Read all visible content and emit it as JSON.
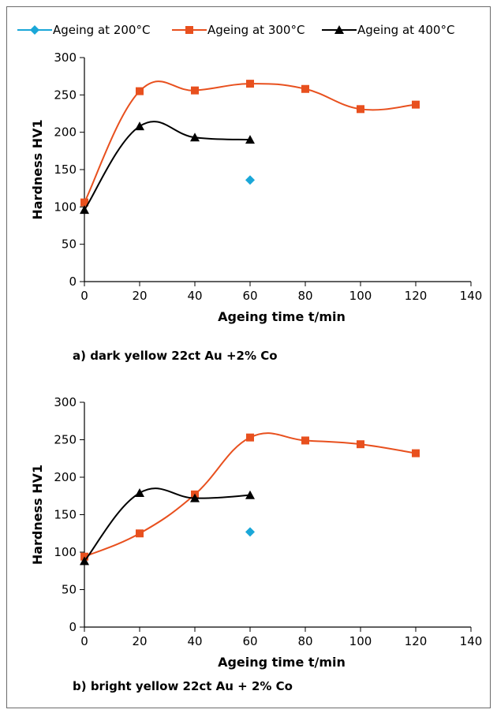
{
  "chart_data": [
    {
      "type": "line",
      "caption": "a) dark yellow 22ct Au +2% Co",
      "xlabel": "Ageing time t/min",
      "ylabel": "Hardness HV1",
      "xlim": [
        0,
        140
      ],
      "ylim": [
        0,
        300
      ],
      "xticks": [
        0,
        20,
        40,
        60,
        80,
        100,
        120,
        140
      ],
      "yticks": [
        0,
        50,
        100,
        150,
        200,
        250,
        300
      ],
      "grid": false,
      "legend_position": "top",
      "series": [
        {
          "name": "Ageing at 200°C",
          "color": "#1aa7d8",
          "marker": "diamond",
          "line": false,
          "x": [
            60
          ],
          "y": [
            136
          ]
        },
        {
          "name": "Ageing at 300°C",
          "color": "#e8501e",
          "marker": "square",
          "line": true,
          "x": [
            0,
            20,
            40,
            60,
            80,
            100,
            120
          ],
          "y": [
            106,
            255,
            256,
            265,
            258,
            231,
            237
          ]
        },
        {
          "name": "Ageing at 400°C",
          "color": "#000000",
          "marker": "triangle",
          "line": true,
          "x": [
            0,
            20,
            40,
            60
          ],
          "y": [
            96,
            208,
            193,
            190
          ]
        }
      ]
    },
    {
      "type": "line",
      "caption": "b) bright yellow 22ct Au + 2% Co",
      "xlabel": "Ageing time t/min",
      "ylabel": "Hardness HV1",
      "xlim": [
        0,
        140
      ],
      "ylim": [
        0,
        300
      ],
      "xticks": [
        0,
        20,
        40,
        60,
        80,
        100,
        120,
        140
      ],
      "yticks": [
        0,
        50,
        100,
        150,
        200,
        250,
        300
      ],
      "grid": false,
      "series": [
        {
          "name": "Ageing at 200°C",
          "color": "#1aa7d8",
          "marker": "diamond",
          "line": false,
          "x": [
            60
          ],
          "y": [
            127
          ]
        },
        {
          "name": "Ageing at 300°C",
          "color": "#e8501e",
          "marker": "square",
          "line": true,
          "x": [
            0,
            20,
            40,
            60,
            80,
            100,
            120
          ],
          "y": [
            94,
            125,
            177,
            253,
            249,
            244,
            232
          ]
        },
        {
          "name": "Ageing at 400°C",
          "color": "#000000",
          "marker": "triangle",
          "line": true,
          "x": [
            0,
            20,
            40,
            60
          ],
          "y": [
            88,
            179,
            172,
            176
          ]
        }
      ]
    }
  ]
}
